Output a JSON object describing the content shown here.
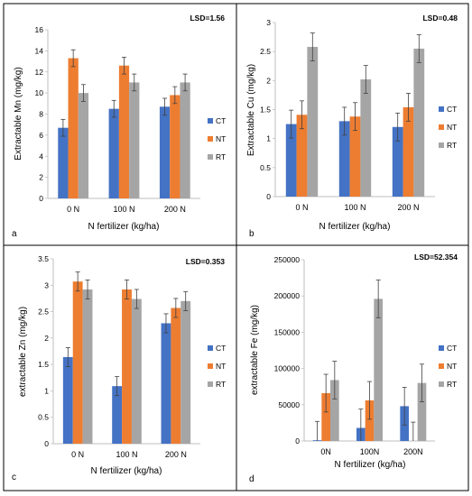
{
  "colors": {
    "CT": "#4472C4",
    "NT": "#ED7D31",
    "RT": "#A5A5A5",
    "axis": "#bfbfbf",
    "border": "#000000",
    "text": "#000000"
  },
  "chart_data": [
    {
      "panel": "a",
      "type": "bar",
      "lsd": "LSD=1.56",
      "xlabel": "N fertilizer (kg/ha)",
      "ylabel": "Extractable Mn (mg/kg)",
      "ylim": [
        0,
        16
      ],
      "yticks": [
        "0",
        "2",
        "4",
        "6",
        "8",
        "10",
        "12",
        "14",
        "16"
      ],
      "categories": [
        "0 N",
        "100 N",
        "200 N"
      ],
      "legend": "right",
      "series": [
        {
          "name": "CT",
          "values": [
            6.7,
            8.5,
            8.7
          ],
          "errors": [
            0.8,
            0.8,
            0.8
          ]
        },
        {
          "name": "NT",
          "values": [
            13.3,
            12.6,
            9.8
          ],
          "errors": [
            0.8,
            0.8,
            0.8
          ]
        },
        {
          "name": "RT",
          "values": [
            10.0,
            11.0,
            11.0
          ],
          "errors": [
            0.8,
            0.8,
            0.8
          ]
        }
      ]
    },
    {
      "panel": "b",
      "type": "bar",
      "lsd": "LSD=0.48",
      "xlabel": "N fertilizer (kg/ha)",
      "ylabel": "Extractable Cu (mg/kg)",
      "ylim": [
        0,
        3
      ],
      "yticks": [
        "0",
        "0.5",
        "1",
        "1.5",
        "2",
        "2.5",
        "3"
      ],
      "categories": [
        "0 N",
        "100 N",
        "200 N"
      ],
      "legend": "right",
      "series": [
        {
          "name": "CT",
          "values": [
            1.25,
            1.3,
            1.2
          ],
          "errors": [
            0.24,
            0.24,
            0.24
          ]
        },
        {
          "name": "NT",
          "values": [
            1.41,
            1.38,
            1.54
          ],
          "errors": [
            0.24,
            0.24,
            0.24
          ]
        },
        {
          "name": "RT",
          "values": [
            2.58,
            2.02,
            2.55
          ],
          "errors": [
            0.24,
            0.24,
            0.24
          ]
        }
      ]
    },
    {
      "panel": "c",
      "type": "bar",
      "lsd": "LSD=0.353",
      "xlabel": "N fertilizer (kg/ha)",
      "ylabel": "extractable Zn (mg/kg)",
      "ylim": [
        0,
        3.5
      ],
      "yticks": [
        "0",
        "0.5",
        "1",
        "1.5",
        "2",
        "2.5",
        "3",
        "3.5"
      ],
      "categories": [
        "0 N",
        "100 N",
        "200 N"
      ],
      "legend": "right",
      "series": [
        {
          "name": "CT",
          "values": [
            1.64,
            1.09,
            2.28
          ],
          "errors": [
            0.18,
            0.18,
            0.18
          ]
        },
        {
          "name": "NT",
          "values": [
            3.07,
            2.92,
            2.57
          ],
          "errors": [
            0.18,
            0.18,
            0.18
          ]
        },
        {
          "name": "RT",
          "values": [
            2.92,
            2.74,
            2.7
          ],
          "errors": [
            0.18,
            0.18,
            0.18
          ]
        }
      ]
    },
    {
      "panel": "d",
      "type": "bar",
      "lsd": "LSD=52.354",
      "xlabel": "N fertilizer (kg/ha)",
      "ylabel": "extractable Fe (mg/kg)",
      "ylim": [
        0,
        250000
      ],
      "yticks": [
        "0",
        "50000",
        "100000",
        "150000",
        "200000",
        "250000"
      ],
      "categories": [
        "0N",
        "100N",
        "200N"
      ],
      "legend": "right",
      "series": [
        {
          "name": "CT",
          "values": [
            1000,
            18000,
            48000
          ],
          "errors": [
            26000,
            26000,
            26000
          ]
        },
        {
          "name": "NT",
          "values": [
            66000,
            56000,
            0
          ],
          "errors": [
            26000,
            26000,
            26000
          ]
        },
        {
          "name": "RT",
          "values": [
            84000,
            196000,
            80000
          ],
          "errors": [
            26000,
            26000,
            26000
          ]
        }
      ]
    }
  ]
}
